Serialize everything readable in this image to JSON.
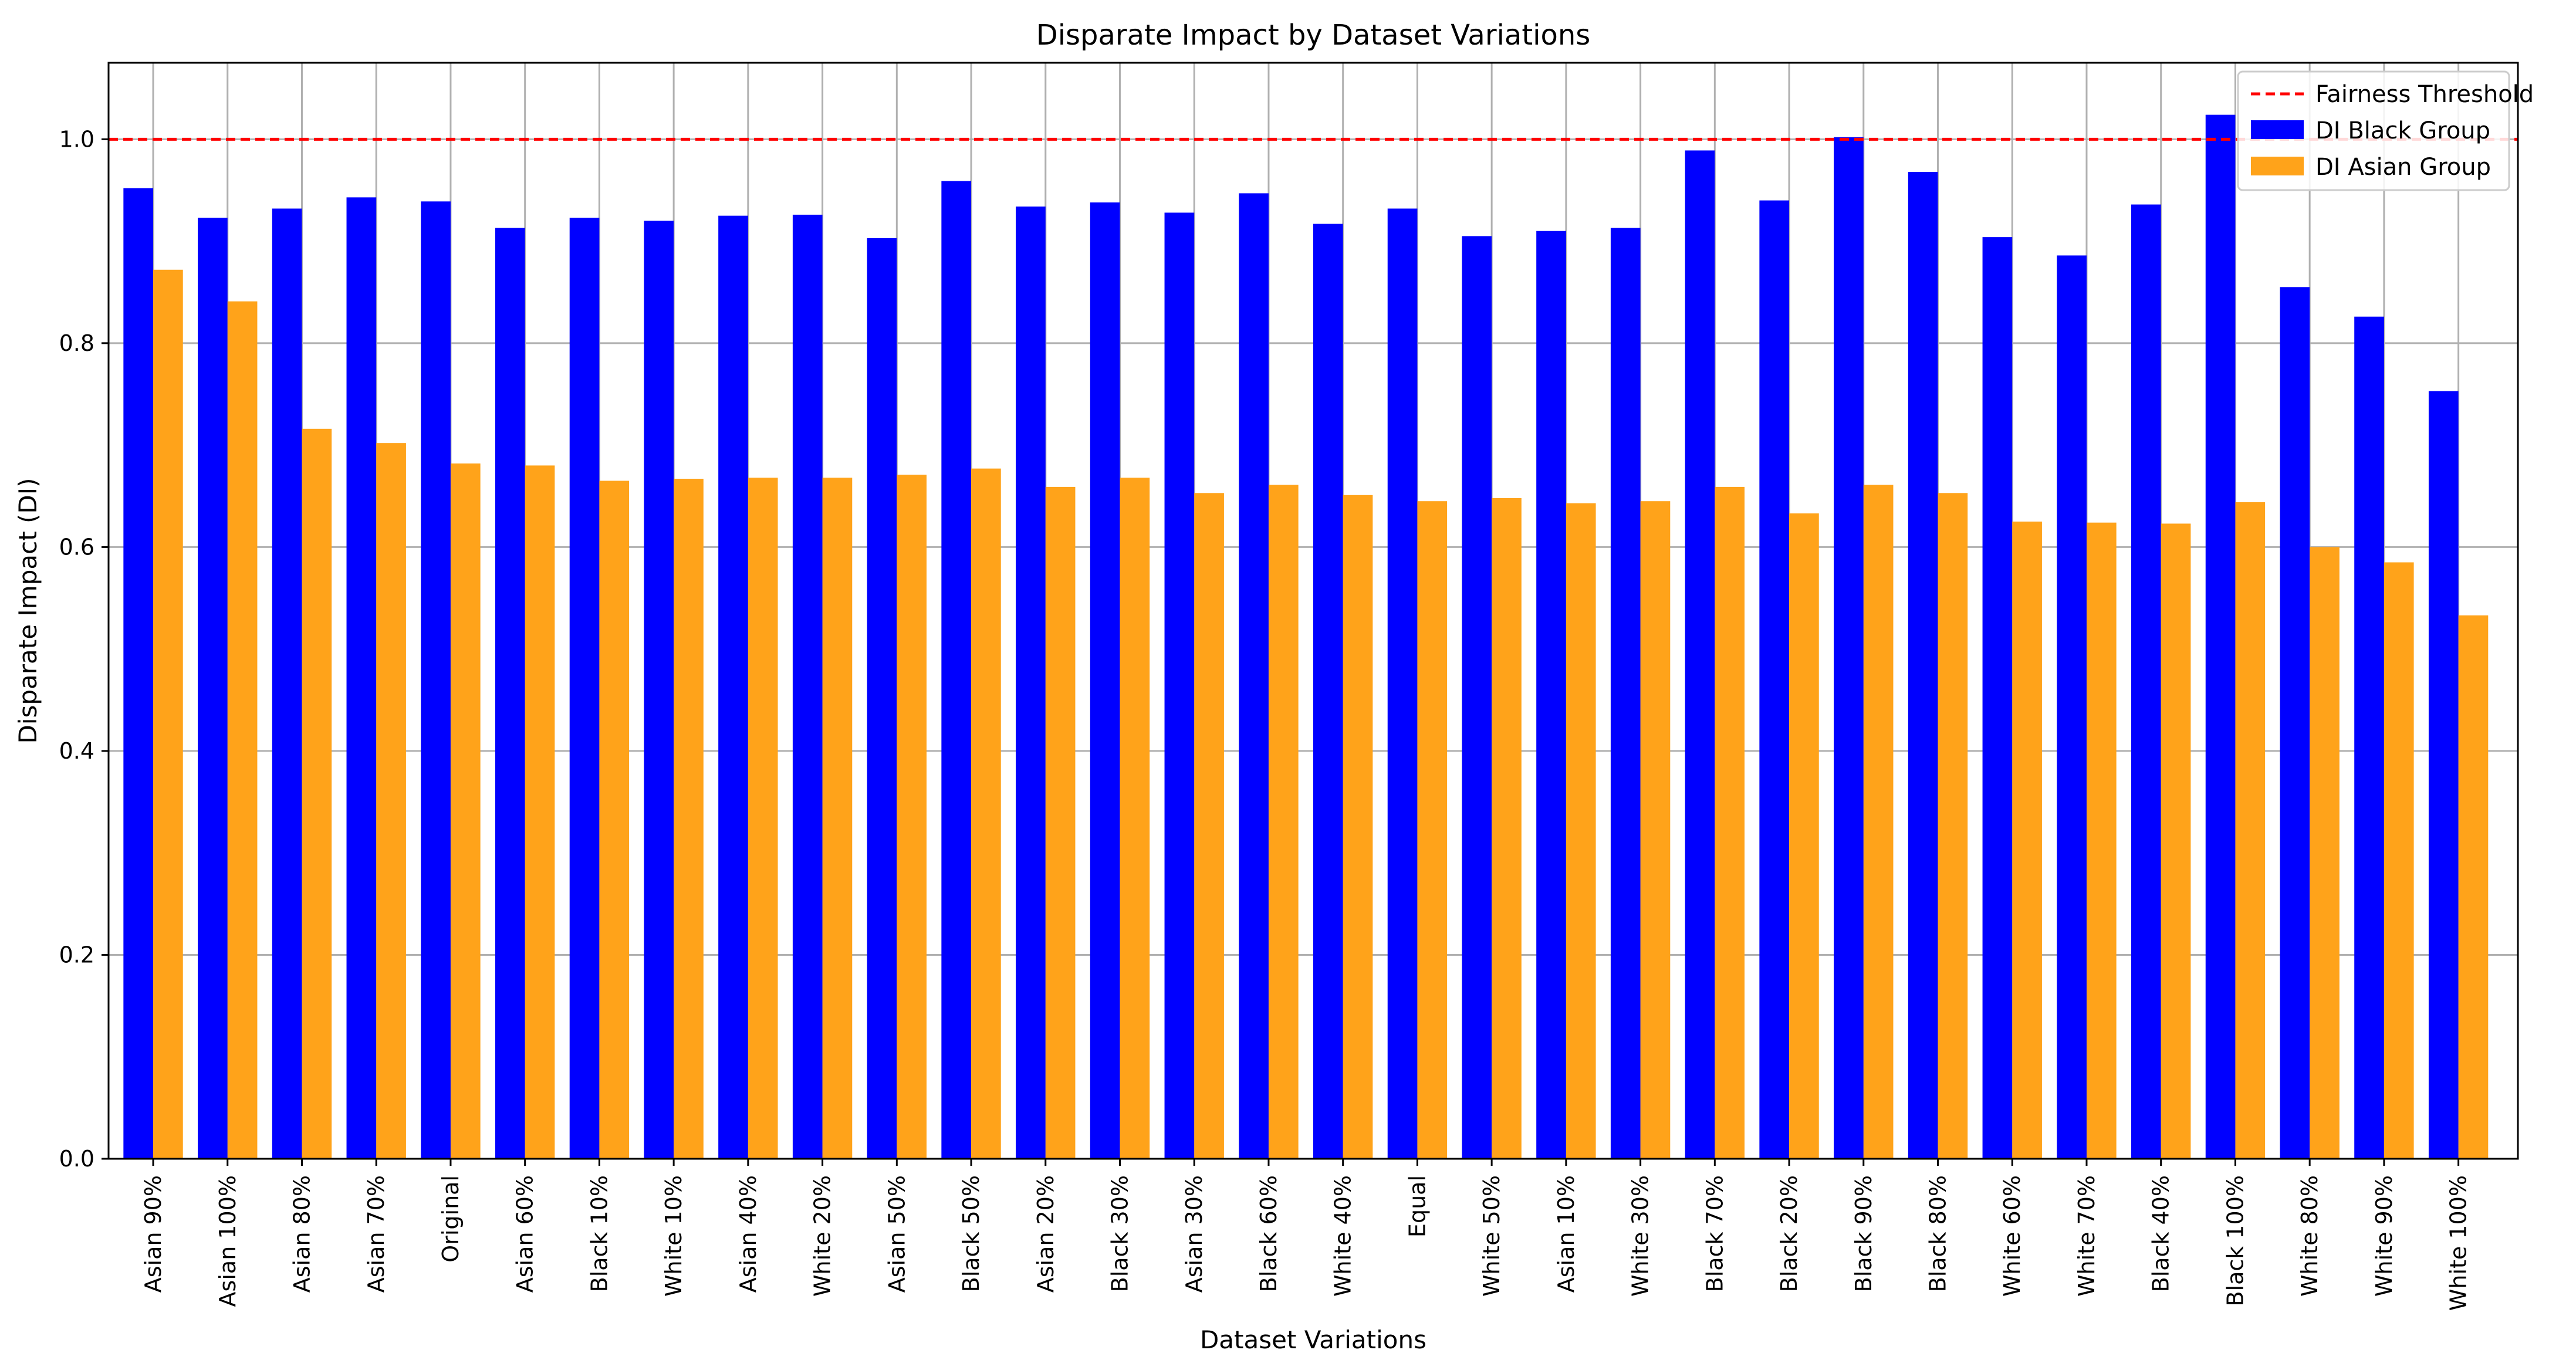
{
  "chart_data": {
    "type": "bar",
    "title": "Disparate Impact by Dataset Variations",
    "xlabel": "Dataset Variations",
    "ylabel": "Disparate Impact (DI)",
    "ylim": [
      0,
      1.075
    ],
    "yticks": [
      0.0,
      0.2,
      0.4,
      0.6,
      0.8,
      1.0
    ],
    "ytick_labels": [
      "0.0",
      "0.2",
      "0.4",
      "0.6",
      "0.8",
      "1.0"
    ],
    "grid": true,
    "legend_position": "top-right",
    "categories": [
      "Asian 90%",
      "Asian 100%",
      "Asian 80%",
      "Asian 70%",
      "Original",
      "Asian 60%",
      "Black 10%",
      "White 10%",
      "Asian 40%",
      "White 20%",
      "Asian 50%",
      "Black 50%",
      "Asian 20%",
      "Black 30%",
      "Asian 30%",
      "Black 60%",
      "White 40%",
      "Equal",
      "White 50%",
      "Asian 10%",
      "White 30%",
      "Black 70%",
      "Black 20%",
      "Black 90%",
      "Black 80%",
      "White 60%",
      "White 70%",
      "Black 40%",
      "Black 100%",
      "White 80%",
      "White 90%",
      "White 100%"
    ],
    "series": [
      {
        "name": "DI Black Group",
        "color": "#0000ff",
        "values": [
          0.952,
          0.923,
          0.932,
          0.943,
          0.939,
          0.913,
          0.923,
          0.92,
          0.925,
          0.926,
          0.903,
          0.959,
          0.934,
          0.938,
          0.928,
          0.947,
          0.917,
          0.932,
          0.905,
          0.91,
          0.913,
          0.989,
          0.94,
          1.002,
          0.968,
          0.904,
          0.886,
          0.936,
          1.024,
          0.855,
          0.826,
          0.753
        ]
      },
      {
        "name": "DI Asian Group",
        "color": "#ffa31a",
        "values": [
          0.872,
          0.841,
          0.716,
          0.702,
          0.682,
          0.68,
          0.665,
          0.667,
          0.668,
          0.668,
          0.671,
          0.677,
          0.659,
          0.668,
          0.653,
          0.661,
          0.651,
          0.645,
          0.648,
          0.643,
          0.645,
          0.659,
          0.633,
          0.661,
          0.653,
          0.625,
          0.624,
          0.623,
          0.644,
          0.6,
          0.585,
          0.533
        ]
      }
    ],
    "threshold": {
      "name": "Fairness Threshold",
      "value": 1.0,
      "color": "#ff0000"
    }
  }
}
